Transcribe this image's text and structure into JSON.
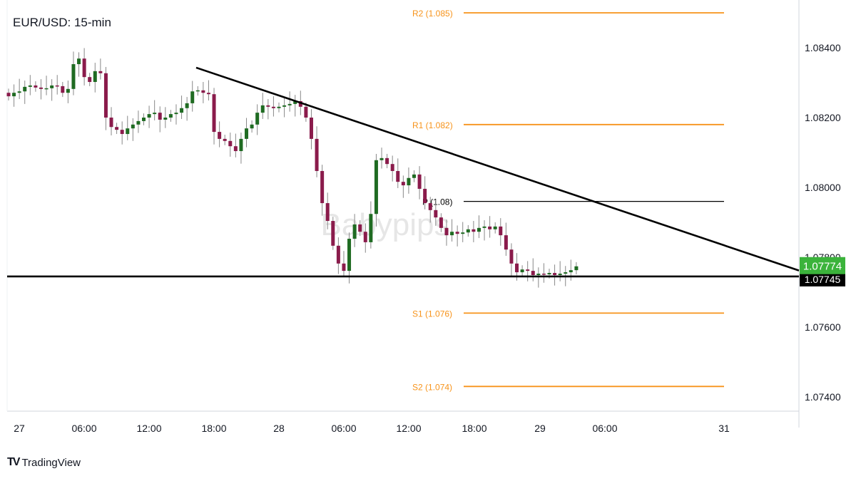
{
  "chart_data": {
    "type": "candlestick",
    "title": "EUR/USD: 15-min",
    "watermark": "Babypips",
    "ylim": [
      1.073,
      1.086
    ],
    "yticks": [
      "1.08400",
      "1.08200",
      "1.08000",
      "1.07800",
      "1.07600",
      "1.07400"
    ],
    "ytick_values": [
      1.084,
      1.082,
      1.08,
      1.078,
      1.076,
      1.074
    ],
    "xticks": [
      "27",
      "06:00",
      "12:00",
      "18:00",
      "28",
      "06:00",
      "12:00",
      "18:00",
      "29",
      "06:00",
      "31"
    ],
    "closes": [
      1.08261,
      1.08271,
      1.08275,
      1.08288,
      1.08292,
      1.08286,
      1.08282,
      1.08284,
      1.08292,
      1.0829,
      1.08271,
      1.08282,
      1.08353,
      1.08369,
      1.08316,
      1.08302,
      1.08333,
      1.08327,
      1.082,
      1.08173,
      1.08165,
      1.08153,
      1.08169,
      1.0818,
      1.0819,
      1.082,
      1.0821,
      1.08214,
      1.08194,
      1.082,
      1.0821,
      1.08214,
      1.08227,
      1.08241,
      1.08275,
      1.08278,
      1.08271,
      1.08267,
      1.08159,
      1.08139,
      1.08133,
      1.08118,
      1.08104,
      1.08139,
      1.08169,
      1.0818,
      1.08214,
      1.08235,
      1.08231,
      1.08227,
      1.08231,
      1.08235,
      1.08239,
      1.08247,
      1.08231,
      1.082,
      1.08139,
      1.08047,
      1.07955,
      1.07904,
      1.07833,
      1.07782,
      1.07761,
      1.07853,
      1.07894,
      1.07873,
      1.07843,
      1.07924,
      1.08078,
      1.08084,
      1.08067,
      1.08047,
      1.08016,
      1.08006,
      1.08027,
      1.08037,
      1.07996,
      1.07955,
      1.07935,
      1.07914,
      1.07884,
      1.07863,
      1.07873,
      1.07867,
      1.07871,
      1.0788,
      1.07873,
      1.07884,
      1.07888,
      1.0788,
      1.07888,
      1.07863,
      1.07822,
      1.07782,
      1.07757,
      1.07765,
      1.07761,
      1.07749,
      1.07753,
      1.07751,
      1.07755,
      1.07749,
      1.07753,
      1.07757,
      1.07763,
      1.07774
    ],
    "pivot_levels": [
      {
        "label": "R2 (1.085)",
        "price": 1.085
      },
      {
        "label": "R1 (1.082)",
        "price": 1.0818
      },
      {
        "label": "P (1.08)",
        "price": 1.0796
      },
      {
        "label": "S1 (1.076)",
        "price": 1.0764
      },
      {
        "label": "S2 (1.074)",
        "price": 1.0743
      }
    ],
    "support_line": {
      "price": 1.07745,
      "label": "1.07745"
    },
    "trendline": {
      "start_price": 1.08343,
      "end_price": 1.07762
    },
    "last_price": {
      "value": 1.07774,
      "label": "1.07774"
    },
    "colors": {
      "up": "#1f6b22",
      "down": "#8a1b4b",
      "pivot_resistance": "#f7931a",
      "pivot": "#000000",
      "last_price": "#3bb33b"
    }
  },
  "branding": {
    "name": "TradingView"
  }
}
